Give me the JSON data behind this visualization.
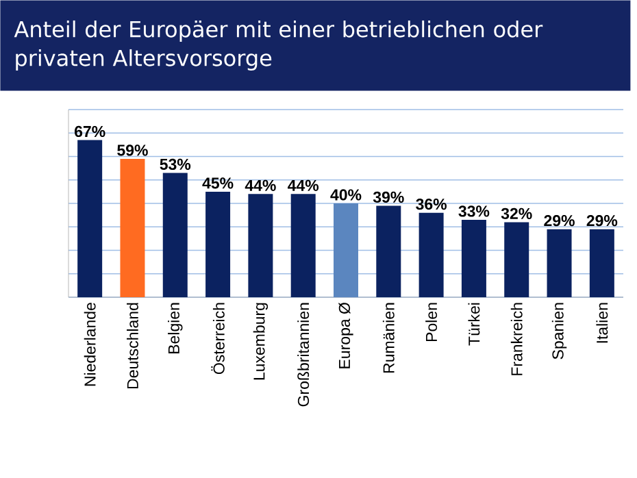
{
  "chart_data": {
    "type": "bar",
    "title": "Anteil der Europäer mit einer betrieblichen oder privaten Altersvorsorge",
    "categories": [
      "Niederlande",
      "Deutschland",
      "Belgien",
      "Österreich",
      "Luxemburg",
      "Großbritannien",
      "Europa Ø",
      "Rumänien",
      "Polen",
      "Türkei",
      "Frankreich",
      "Spanien",
      "Italien"
    ],
    "values": [
      67,
      59,
      53,
      45,
      44,
      44,
      40,
      39,
      36,
      33,
      32,
      29,
      29
    ],
    "value_labels": [
      "67%",
      "59%",
      "53%",
      "45%",
      "44%",
      "44%",
      "40%",
      "39%",
      "36%",
      "33%",
      "32%",
      "29%",
      "29%"
    ],
    "colors": [
      "#0b2260",
      "#ff6b21",
      "#0b2260",
      "#0b2260",
      "#0b2260",
      "#0b2260",
      "#5b86bf",
      "#0b2260",
      "#0b2260",
      "#0b2260",
      "#0b2260",
      "#0b2260",
      "#0b2260"
    ],
    "ylim": [
      0,
      80
    ],
    "yticks": [
      {
        "value": 0,
        "label": null
      },
      {
        "value": 10,
        "label": null
      },
      {
        "value": 20,
        "label": null
      },
      {
        "value": 30,
        "label": null
      },
      {
        "value": 40,
        "label": null
      },
      {
        "value": 50,
        "label": null
      },
      {
        "value": 60,
        "label": null
      },
      {
        "value": 70,
        "label": null
      },
      {
        "value": 80,
        "label": null
      }
    ],
    "tick_labels": "x",
    "grid": "y"
  }
}
